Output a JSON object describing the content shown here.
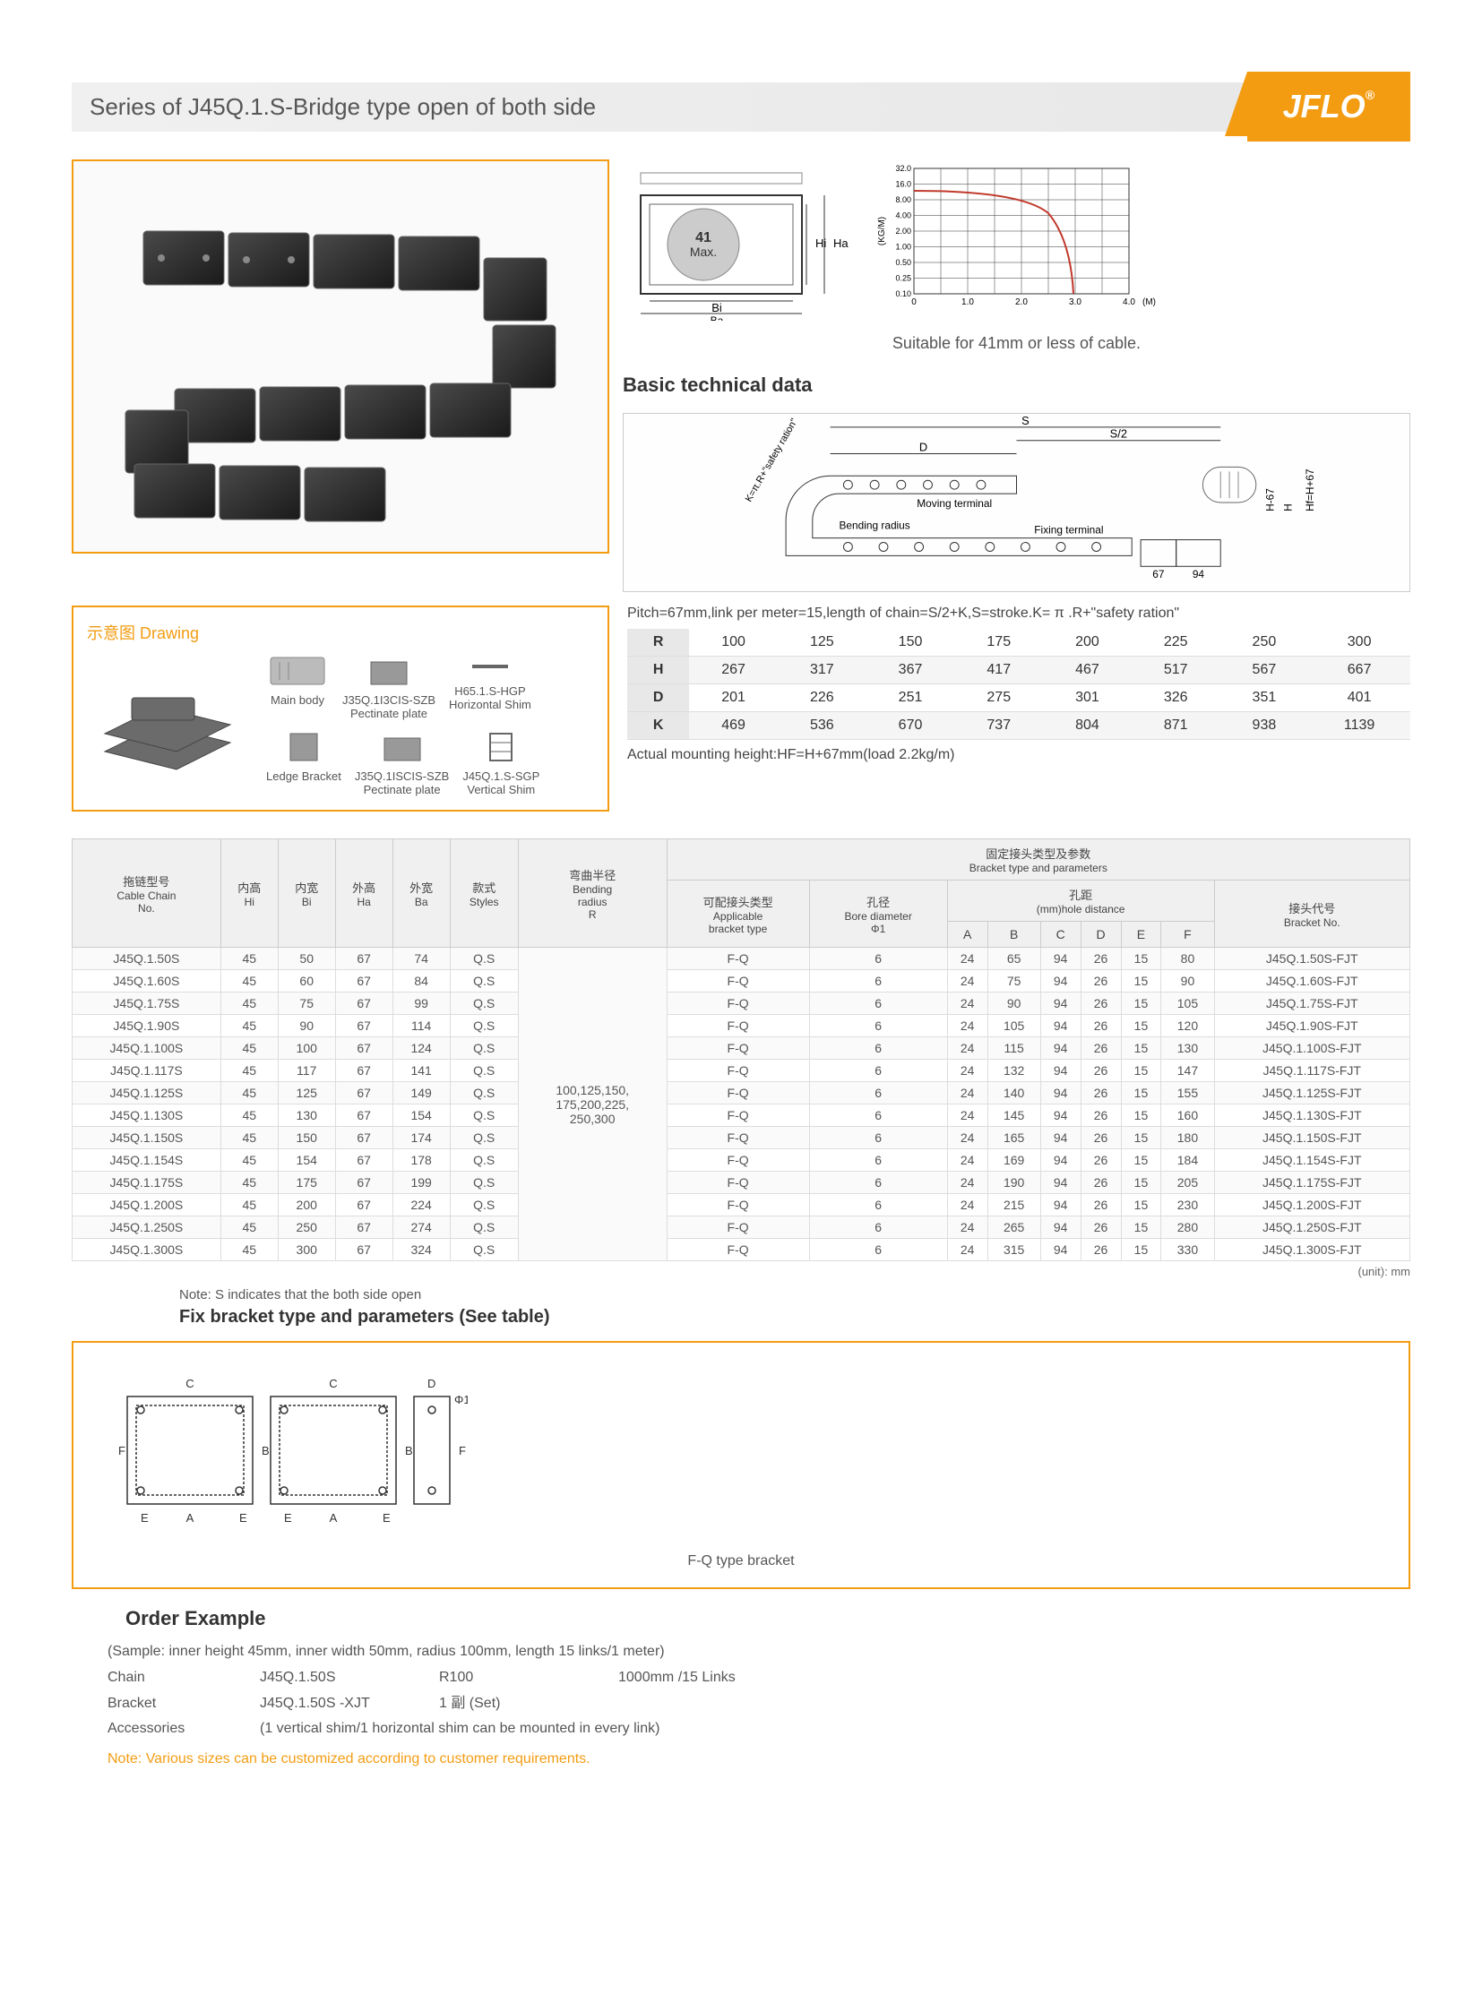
{
  "header": {
    "title": "Series of J45Q.1.S-Bridge type open of both side",
    "logo": "JFLO"
  },
  "crossSection": {
    "maxLabel": "41\nMax.",
    "dims": [
      "Hi",
      "Ha",
      "Bi",
      "Ba"
    ]
  },
  "loadChart": {
    "yticks": [
      "32.0",
      "16.0",
      "8.00",
      "4.00",
      "2.00",
      "1.00",
      "0.50",
      "0.25",
      "0.10"
    ],
    "xticks": [
      "0",
      "1.0",
      "2.0",
      "3.0",
      "4.0"
    ],
    "ylabel": "(KG/M)",
    "xlabel": "(M)",
    "lineColor": "#c0392b",
    "gridColor": "#333"
  },
  "suitableText": "Suitable for 41mm or less of cable.",
  "btdTitle": "Basic technical data",
  "techDiagram": {
    "labels": [
      "S",
      "S/2",
      "D",
      "Moving terminal",
      "Bending radius",
      "Fixing terminal",
      "H-67",
      "H",
      "Hf=H+67",
      "67",
      "94",
      "67"
    ]
  },
  "drawing": {
    "title": "示意图 Drawing",
    "parts": [
      {
        "name": "Main body"
      },
      {
        "name": "Ledge\nBracket"
      },
      {
        "code": "J35Q.1I3CIS-SZB",
        "name": "Pectinate plate"
      },
      {
        "code": "J35Q.1ISCIS-SZB",
        "name": "Pectinate plate"
      },
      {
        "code": "H65.1.S-HGP",
        "name": "Horizontal Shim"
      },
      {
        "code": "J45Q.1.S-SGP",
        "name": "Vertical Shim"
      }
    ]
  },
  "formula": "Pitch=67mm,link per meter=15,length of chain=S/2+K,S=stroke.K= π .R+\"safety ration\"",
  "rhdTable": {
    "rows": [
      {
        "label": "R",
        "vals": [
          "100",
          "125",
          "150",
          "175",
          "200",
          "225",
          "250",
          "300"
        ]
      },
      {
        "label": "H",
        "vals": [
          "267",
          "317",
          "367",
          "417",
          "467",
          "517",
          "567",
          "667"
        ]
      },
      {
        "label": "D",
        "vals": [
          "201",
          "226",
          "251",
          "275",
          "301",
          "326",
          "351",
          "401"
        ]
      },
      {
        "label": "K",
        "vals": [
          "469",
          "536",
          "670",
          "737",
          "804",
          "871",
          "938",
          "1139"
        ]
      }
    ]
  },
  "mountText": "Actual mounting height:HF=H+67mm(load 2.2kg/m)",
  "mainTable": {
    "headers": {
      "chainNo": {
        "cn": "拖链型号",
        "en": "Cable Chain\nNo."
      },
      "hi": {
        "cn": "内高",
        "en": "Hi"
      },
      "bi": {
        "cn": "内宽",
        "en": "Bi"
      },
      "ha": {
        "cn": "外高",
        "en": "Ha"
      },
      "ba": {
        "cn": "外宽",
        "en": "Ba"
      },
      "styles": {
        "cn": "款式",
        "en": "Styles"
      },
      "bendR": {
        "cn": "弯曲半径",
        "en": "Bending\nradius\nR"
      },
      "bracketGroup": {
        "cn": "固定接头类型及参数",
        "en": "Bracket type and parameters"
      },
      "appType": {
        "cn": "可配接头类型",
        "en": "Applicable\nbracket type"
      },
      "bore": {
        "cn": "孔径",
        "en": "Bore diameter\nΦ1"
      },
      "holeDist": {
        "cn": "孔距",
        "en": "(mm)hole distance"
      },
      "bracketNo": {
        "cn": "接头代号",
        "en": "Bracket No."
      }
    },
    "bendRadiusText": "100,125,150,\n175,200,225,\n250,300",
    "holeLabels": [
      "A",
      "B",
      "C",
      "D",
      "E",
      "F"
    ],
    "rows": [
      {
        "no": "J45Q.1.50S",
        "hi": "45",
        "bi": "50",
        "ha": "67",
        "ba": "74",
        "st": "Q.S",
        "at": "F-Q",
        "bd": "6",
        "h": [
          "24",
          "65",
          "94",
          "26",
          "15",
          "80"
        ],
        "bn": "J45Q.1.50S-FJT"
      },
      {
        "no": "J45Q.1.60S",
        "hi": "45",
        "bi": "60",
        "ha": "67",
        "ba": "84",
        "st": "Q.S",
        "at": "F-Q",
        "bd": "6",
        "h": [
          "24",
          "75",
          "94",
          "26",
          "15",
          "90"
        ],
        "bn": "J45Q.1.60S-FJT"
      },
      {
        "no": "J45Q.1.75S",
        "hi": "45",
        "bi": "75",
        "ha": "67",
        "ba": "99",
        "st": "Q.S",
        "at": "F-Q",
        "bd": "6",
        "h": [
          "24",
          "90",
          "94",
          "26",
          "15",
          "105"
        ],
        "bn": "J45Q.1.75S-FJT"
      },
      {
        "no": "J45Q.1.90S",
        "hi": "45",
        "bi": "90",
        "ha": "67",
        "ba": "114",
        "st": "Q.S",
        "at": "F-Q",
        "bd": "6",
        "h": [
          "24",
          "105",
          "94",
          "26",
          "15",
          "120"
        ],
        "bn": "J45Q.1.90S-FJT"
      },
      {
        "no": "J45Q.1.100S",
        "hi": "45",
        "bi": "100",
        "ha": "67",
        "ba": "124",
        "st": "Q.S",
        "at": "F-Q",
        "bd": "6",
        "h": [
          "24",
          "115",
          "94",
          "26",
          "15",
          "130"
        ],
        "bn": "J45Q.1.100S-FJT"
      },
      {
        "no": "J45Q.1.117S",
        "hi": "45",
        "bi": "117",
        "ha": "67",
        "ba": "141",
        "st": "Q.S",
        "at": "F-Q",
        "bd": "6",
        "h": [
          "24",
          "132",
          "94",
          "26",
          "15",
          "147"
        ],
        "bn": "J45Q.1.117S-FJT"
      },
      {
        "no": "J45Q.1.125S",
        "hi": "45",
        "bi": "125",
        "ha": "67",
        "ba": "149",
        "st": "Q.S",
        "at": "F-Q",
        "bd": "6",
        "h": [
          "24",
          "140",
          "94",
          "26",
          "15",
          "155"
        ],
        "bn": "J45Q.1.125S-FJT"
      },
      {
        "no": "J45Q.1.130S",
        "hi": "45",
        "bi": "130",
        "ha": "67",
        "ba": "154",
        "st": "Q.S",
        "at": "F-Q",
        "bd": "6",
        "h": [
          "24",
          "145",
          "94",
          "26",
          "15",
          "160"
        ],
        "bn": "J45Q.1.130S-FJT"
      },
      {
        "no": "J45Q.1.150S",
        "hi": "45",
        "bi": "150",
        "ha": "67",
        "ba": "174",
        "st": "Q.S",
        "at": "F-Q",
        "bd": "6",
        "h": [
          "24",
          "165",
          "94",
          "26",
          "15",
          "180"
        ],
        "bn": "J45Q.1.150S-FJT"
      },
      {
        "no": "J45Q.1.154S",
        "hi": "45",
        "bi": "154",
        "ha": "67",
        "ba": "178",
        "st": "Q.S",
        "at": "F-Q",
        "bd": "6",
        "h": [
          "24",
          "169",
          "94",
          "26",
          "15",
          "184"
        ],
        "bn": "J45Q.1.154S-FJT"
      },
      {
        "no": "J45Q.1.175S",
        "hi": "45",
        "bi": "175",
        "ha": "67",
        "ba": "199",
        "st": "Q.S",
        "at": "F-Q",
        "bd": "6",
        "h": [
          "24",
          "190",
          "94",
          "26",
          "15",
          "205"
        ],
        "bn": "J45Q.1.175S-FJT"
      },
      {
        "no": "J45Q.1.200S",
        "hi": "45",
        "bi": "200",
        "ha": "67",
        "ba": "224",
        "st": "Q.S",
        "at": "F-Q",
        "bd": "6",
        "h": [
          "24",
          "215",
          "94",
          "26",
          "15",
          "230"
        ],
        "bn": "J45Q.1.200S-FJT"
      },
      {
        "no": "J45Q.1.250S",
        "hi": "45",
        "bi": "250",
        "ha": "67",
        "ba": "274",
        "st": "Q.S",
        "at": "F-Q",
        "bd": "6",
        "h": [
          "24",
          "265",
          "94",
          "26",
          "15",
          "280"
        ],
        "bn": "J45Q.1.250S-FJT"
      },
      {
        "no": "J45Q.1.300S",
        "hi": "45",
        "bi": "300",
        "ha": "67",
        "ba": "324",
        "st": "Q.S",
        "at": "F-Q",
        "bd": "6",
        "h": [
          "24",
          "315",
          "94",
          "26",
          "15",
          "330"
        ],
        "bn": "J45Q.1.300S-FJT"
      }
    ]
  },
  "unitNote": "(unit): mm",
  "noteS": "Note: S indicates that the both side open",
  "fixTitle": "Fix bracket type and parameters (See table)",
  "bracketLabel": "F-Q type bracket",
  "orderTitle": "Order Example",
  "order": {
    "sample": "(Sample: inner height 45mm, inner width 50mm, radius 100mm, length 15 links/1 meter)",
    "rows": [
      {
        "label": "Chain",
        "vals": [
          "J45Q.1.50S",
          "R100",
          "1000mm /15 Links"
        ]
      },
      {
        "label": "Bracket",
        "vals": [
          "J45Q.1.50S -XJT",
          "1 副 (Set)"
        ]
      },
      {
        "label": "Accessories",
        "vals": [
          "(1 vertical shim/1 horizontal shim can be mounted in every link)"
        ]
      }
    ],
    "note": "Note: Various sizes can be customized according to customer requirements."
  }
}
